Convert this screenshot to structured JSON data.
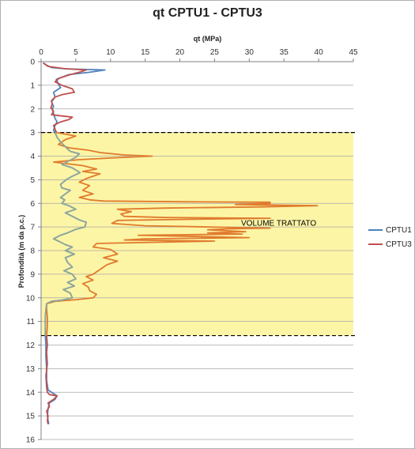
{
  "chart_data": {
    "type": "line",
    "title": "qt CPTU1 - CPTU3",
    "xlabel": "qt (MPa)",
    "ylabel": "Profondità (m da p.c.)",
    "xlim": [
      0,
      45
    ],
    "ylim": [
      0,
      16
    ],
    "y_inverted": true,
    "x_axis_position": "top",
    "x_ticks": [
      "0",
      "5",
      "10",
      "15",
      "20",
      "25",
      "30",
      "35",
      "40",
      "45"
    ],
    "y_ticks": [
      "0",
      "1",
      "2",
      "3",
      "4",
      "5",
      "6",
      "7",
      "8",
      "9",
      "10",
      "11",
      "12",
      "13",
      "14",
      "15",
      "16"
    ],
    "grid": "horizontal",
    "legend_position": "right",
    "annotation": "VOLUME TRATTATO",
    "highlight_zone": {
      "from_depth": 3.0,
      "to_depth": 11.6,
      "color": "#fdf5a6"
    },
    "series": [
      {
        "name": "CPTU1",
        "color": "#4f81bd",
        "points": [
          [
            0.3,
            0.05
          ],
          [
            0.8,
            0.15
          ],
          [
            1.5,
            0.25
          ],
          [
            3.5,
            0.3
          ],
          [
            6.5,
            0.33
          ],
          [
            9.2,
            0.35
          ],
          [
            7.0,
            0.45
          ],
          [
            4.0,
            0.55
          ],
          [
            2.2,
            0.75
          ],
          [
            2.5,
            0.95
          ],
          [
            2.8,
            1.1
          ],
          [
            1.8,
            1.3
          ],
          [
            2.0,
            1.5
          ],
          [
            1.5,
            1.7
          ],
          [
            1.8,
            1.9
          ],
          [
            1.6,
            2.0
          ],
          [
            1.8,
            2.2
          ],
          [
            2.0,
            2.4
          ],
          [
            2.3,
            2.55
          ],
          [
            2.0,
            2.7
          ],
          [
            1.8,
            2.9
          ],
          [
            2.0,
            3.0
          ],
          [
            2.3,
            3.2
          ],
          [
            2.8,
            3.4
          ],
          [
            3.5,
            3.6
          ],
          [
            4.2,
            3.8
          ],
          [
            5.5,
            3.9
          ],
          [
            5.0,
            4.05
          ],
          [
            4.0,
            4.2
          ],
          [
            3.0,
            4.35
          ],
          [
            4.5,
            4.5
          ],
          [
            5.6,
            4.7
          ],
          [
            4.5,
            4.85
          ],
          [
            3.6,
            5.0
          ],
          [
            2.8,
            5.2
          ],
          [
            3.0,
            5.35
          ],
          [
            4.2,
            5.45
          ],
          [
            3.5,
            5.6
          ],
          [
            2.8,
            5.75
          ],
          [
            3.4,
            5.85
          ],
          [
            3.0,
            6.0
          ],
          [
            4.0,
            6.1
          ],
          [
            5.0,
            6.25
          ],
          [
            3.5,
            6.4
          ],
          [
            4.5,
            6.55
          ],
          [
            5.5,
            6.7
          ],
          [
            6.5,
            6.8
          ],
          [
            6.3,
            7.0
          ],
          [
            5.0,
            7.1
          ],
          [
            3.8,
            7.25
          ],
          [
            2.8,
            7.35
          ],
          [
            1.8,
            7.5
          ],
          [
            2.5,
            7.6
          ],
          [
            3.5,
            7.75
          ],
          [
            4.5,
            7.85
          ],
          [
            3.5,
            8.0
          ],
          [
            4.8,
            8.15
          ],
          [
            3.5,
            8.3
          ],
          [
            3.8,
            8.5
          ],
          [
            4.5,
            8.7
          ],
          [
            3.3,
            8.85
          ],
          [
            4.5,
            9.0
          ],
          [
            5.0,
            9.2
          ],
          [
            3.8,
            9.35
          ],
          [
            4.8,
            9.5
          ],
          [
            3.2,
            9.65
          ],
          [
            4.2,
            9.8
          ],
          [
            4.5,
            10.0
          ],
          [
            3.0,
            10.1
          ],
          [
            1.5,
            10.15
          ],
          [
            0.8,
            10.25
          ],
          [
            0.7,
            10.5
          ],
          [
            0.6,
            10.8
          ],
          [
            0.6,
            11.2
          ],
          [
            0.6,
            11.6
          ],
          [
            0.7,
            12.0
          ],
          [
            0.7,
            12.5
          ],
          [
            0.8,
            13.0
          ],
          [
            0.8,
            13.5
          ],
          [
            1.0,
            13.9
          ],
          [
            1.5,
            14.0
          ],
          [
            2.3,
            14.15
          ],
          [
            2.0,
            14.3
          ],
          [
            1.2,
            14.45
          ],
          [
            1.0,
            14.7
          ],
          [
            0.9,
            15.0
          ],
          [
            1.0,
            15.2
          ],
          [
            1.1,
            15.35
          ]
        ]
      },
      {
        "name": "CPTU3",
        "color": "#c0504d",
        "points": [
          [
            0.3,
            0.05
          ],
          [
            1.0,
            0.2
          ],
          [
            3.5,
            0.3
          ],
          [
            6.5,
            0.35
          ],
          [
            5.5,
            0.45
          ],
          [
            4.2,
            0.55
          ],
          [
            2.6,
            0.7
          ],
          [
            2.0,
            0.85
          ],
          [
            3.0,
            1.0
          ],
          [
            4.5,
            1.15
          ],
          [
            4.8,
            1.3
          ],
          [
            3.0,
            1.4
          ],
          [
            2.0,
            1.5
          ],
          [
            1.5,
            1.65
          ],
          [
            1.6,
            1.8
          ],
          [
            1.4,
            1.95
          ],
          [
            1.8,
            2.1
          ],
          [
            1.5,
            2.25
          ],
          [
            4.5,
            2.35
          ],
          [
            4.0,
            2.45
          ],
          [
            2.8,
            2.55
          ],
          [
            1.8,
            2.7
          ],
          [
            2.0,
            2.85
          ],
          [
            2.2,
            3.0
          ]
        ]
      },
      {
        "name": "",
        "color": "#e07b2e",
        "points": [
          [
            2.2,
            3.0
          ],
          [
            5.0,
            3.15
          ],
          [
            3.5,
            3.3
          ],
          [
            2.5,
            3.5
          ],
          [
            4.0,
            3.65
          ],
          [
            6.8,
            3.75
          ],
          [
            8.5,
            3.85
          ],
          [
            12.0,
            3.95
          ],
          [
            16.0,
            4.0
          ],
          [
            10.0,
            4.08
          ],
          [
            5.5,
            4.15
          ],
          [
            1.8,
            4.25
          ],
          [
            6.0,
            4.4
          ],
          [
            8.0,
            4.55
          ],
          [
            6.0,
            4.65
          ],
          [
            8.5,
            4.75
          ],
          [
            6.5,
            4.95
          ],
          [
            5.5,
            5.1
          ],
          [
            7.0,
            5.25
          ],
          [
            6.0,
            5.45
          ],
          [
            7.5,
            5.6
          ],
          [
            5.5,
            5.75
          ],
          [
            7.0,
            5.85
          ],
          [
            9.0,
            5.9
          ],
          [
            20.0,
            5.93
          ],
          [
            33.0,
            5.95
          ],
          [
            33.0,
            6.0
          ],
          [
            28.0,
            6.05
          ],
          [
            39.8,
            6.1
          ],
          [
            32.0,
            6.15
          ],
          [
            18.0,
            6.2
          ],
          [
            11.0,
            6.25
          ],
          [
            13.0,
            6.35
          ],
          [
            11.5,
            6.45
          ],
          [
            12.0,
            6.55
          ],
          [
            18.0,
            6.6
          ],
          [
            33.0,
            6.63
          ],
          [
            20.0,
            6.68
          ],
          [
            11.0,
            6.72
          ],
          [
            10.2,
            6.85
          ],
          [
            15.0,
            6.95
          ],
          [
            24.0,
            7.0
          ],
          [
            33.0,
            7.05
          ],
          [
            27.0,
            7.08
          ],
          [
            24.0,
            7.12
          ],
          [
            29.5,
            7.2
          ],
          [
            24.0,
            7.25
          ],
          [
            29.0,
            7.3
          ],
          [
            14.0,
            7.35
          ],
          [
            30.0,
            7.45
          ],
          [
            15.0,
            7.5
          ],
          [
            12.0,
            7.55
          ],
          [
            25.0,
            7.6
          ],
          [
            8.0,
            7.7
          ],
          [
            7.5,
            7.85
          ],
          [
            10.0,
            7.95
          ],
          [
            11.0,
            8.15
          ],
          [
            9.0,
            8.3
          ],
          [
            11.0,
            8.45
          ],
          [
            9.5,
            8.6
          ],
          [
            8.5,
            8.8
          ],
          [
            7.5,
            9.0
          ],
          [
            6.5,
            9.1
          ],
          [
            7.5,
            9.25
          ],
          [
            6.0,
            9.4
          ],
          [
            6.8,
            9.55
          ],
          [
            7.0,
            9.7
          ],
          [
            8.0,
            9.85
          ],
          [
            7.5,
            10.0
          ],
          [
            5.0,
            10.08
          ],
          [
            2.0,
            10.15
          ],
          [
            0.8,
            10.25
          ],
          [
            0.8,
            10.5
          ],
          [
            0.9,
            10.8
          ],
          [
            0.9,
            11.2
          ],
          [
            0.8,
            11.6
          ]
        ]
      },
      {
        "name": "",
        "color": "#c0504d",
        "points": [
          [
            0.8,
            11.6
          ],
          [
            0.9,
            12.0
          ],
          [
            0.8,
            12.3
          ],
          [
            0.9,
            12.8
          ],
          [
            0.7,
            13.3
          ],
          [
            0.8,
            13.8
          ],
          [
            0.9,
            14.0
          ],
          [
            1.2,
            14.1
          ],
          [
            2.3,
            14.15
          ],
          [
            1.8,
            14.3
          ],
          [
            1.0,
            14.45
          ],
          [
            1.2,
            14.6
          ],
          [
            0.8,
            14.8
          ],
          [
            1.0,
            15.0
          ],
          [
            0.9,
            15.2
          ],
          [
            1.0,
            15.35
          ]
        ]
      },
      {
        "name": "",
        "color": "#8fa89a",
        "points": [
          [
            2.0,
            3.0
          ],
          [
            2.3,
            3.2
          ],
          [
            2.8,
            3.4
          ],
          [
            3.5,
            3.6
          ],
          [
            4.2,
            3.8
          ],
          [
            5.5,
            3.9
          ],
          [
            5.0,
            4.05
          ],
          [
            4.0,
            4.2
          ],
          [
            3.0,
            4.35
          ],
          [
            4.5,
            4.5
          ],
          [
            5.6,
            4.7
          ],
          [
            4.5,
            4.85
          ],
          [
            3.6,
            5.0
          ],
          [
            2.8,
            5.2
          ],
          [
            3.0,
            5.35
          ],
          [
            4.2,
            5.45
          ],
          [
            3.5,
            5.6
          ],
          [
            2.8,
            5.75
          ],
          [
            3.4,
            5.85
          ],
          [
            3.0,
            6.0
          ],
          [
            4.0,
            6.1
          ],
          [
            5.0,
            6.25
          ],
          [
            3.5,
            6.4
          ],
          [
            4.5,
            6.55
          ],
          [
            5.5,
            6.7
          ],
          [
            6.5,
            6.8
          ],
          [
            6.3,
            7.0
          ],
          [
            5.0,
            7.1
          ],
          [
            3.8,
            7.25
          ],
          [
            2.8,
            7.35
          ],
          [
            1.8,
            7.5
          ],
          [
            2.5,
            7.6
          ],
          [
            3.5,
            7.75
          ],
          [
            4.5,
            7.85
          ],
          [
            3.5,
            8.0
          ],
          [
            4.8,
            8.15
          ],
          [
            3.5,
            8.3
          ],
          [
            3.8,
            8.5
          ],
          [
            4.5,
            8.7
          ],
          [
            3.3,
            8.85
          ],
          [
            4.5,
            9.0
          ],
          [
            5.0,
            9.2
          ],
          [
            3.8,
            9.35
          ],
          [
            4.8,
            9.5
          ],
          [
            3.2,
            9.65
          ],
          [
            4.2,
            9.8
          ],
          [
            4.5,
            10.0
          ],
          [
            3.0,
            10.1
          ],
          [
            1.5,
            10.15
          ],
          [
            0.8,
            10.25
          ],
          [
            0.7,
            10.5
          ],
          [
            0.6,
            10.8
          ],
          [
            0.6,
            11.2
          ],
          [
            0.6,
            11.6
          ]
        ]
      }
    ],
    "legend": [
      {
        "label": "CPTU1",
        "color": "#4f81bd"
      },
      {
        "label": "CPTU3",
        "color": "#c0504d"
      }
    ]
  }
}
